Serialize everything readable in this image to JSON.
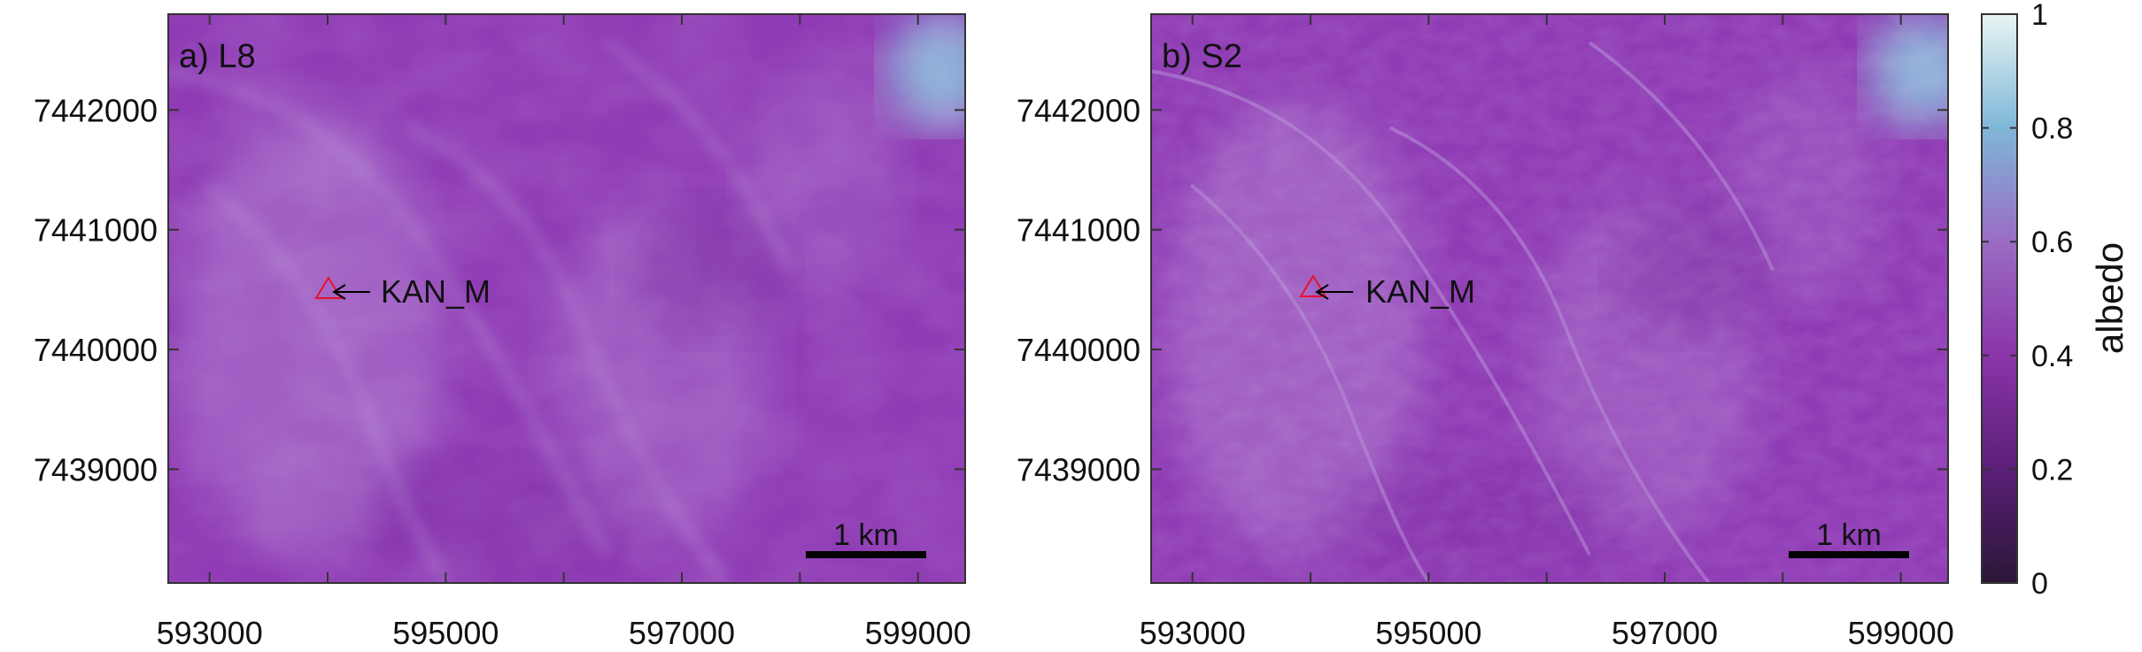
{
  "colors": {
    "surface_base": "#8f3bb5",
    "surface_light": "#b58cd6",
    "surface_dark": "#7a2aa0",
    "surface_bright": "#8ec6df",
    "axis": "#333333",
    "marker": "#e8102a",
    "arrow": "#000000",
    "scalebar": "#000000"
  },
  "axes": {
    "x_ticks": [
      593000,
      595000,
      597000,
      599000
    ],
    "x_minor_ticks": [
      594000,
      596000,
      598000
    ],
    "y_ticks": [
      7442000,
      7441000,
      7440000,
      7439000
    ]
  },
  "panels": [
    {
      "id": "l8",
      "label": "a) L8",
      "station": "KAN_M",
      "scale_label": "1 km"
    },
    {
      "id": "s2",
      "label": "b) S2",
      "station": "KAN_M",
      "scale_label": "1 km"
    }
  ],
  "colorbar": {
    "label": "albedo",
    "min": 0,
    "max": 1,
    "ticks": [
      "0",
      "0.2",
      "0.4",
      "0.6",
      "0.8",
      "1"
    ],
    "stops": [
      "#2a1636",
      "#5b1f78",
      "#8a35a8",
      "#9a6cc4",
      "#7fb7d8",
      "#e8f5f3"
    ]
  }
}
